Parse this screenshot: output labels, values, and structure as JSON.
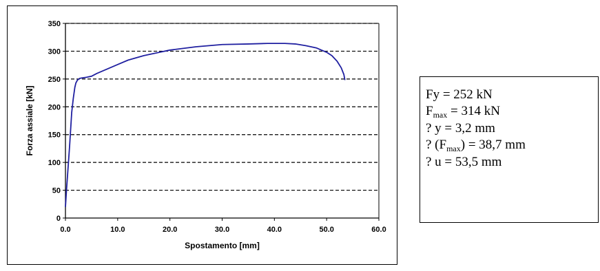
{
  "chart_data": {
    "type": "line",
    "title": "",
    "xlabel": "Spostamento [mm]",
    "ylabel": "Forza assiale [kN]",
    "xlim": [
      0,
      60
    ],
    "ylim": [
      0,
      350
    ],
    "xticks": [
      "0.0",
      "10.0",
      "20.0",
      "30.0",
      "40.0",
      "50.0",
      "60.0"
    ],
    "xtick_values": [
      0,
      10,
      20,
      30,
      40,
      50,
      60
    ],
    "yticks": [
      "0",
      "50",
      "100",
      "150",
      "200",
      "250",
      "300",
      "350"
    ],
    "ytick_values": [
      0,
      50,
      100,
      150,
      200,
      250,
      300,
      350
    ],
    "grid": "horizontal-dashed",
    "legend": "none",
    "line_color": "#1f1fa0",
    "series": [
      {
        "x": [
          0,
          0.2,
          0.5,
          0.8,
          1.0,
          1.2,
          1.5,
          1.8,
          2.0,
          2.3,
          2.7,
          3.2,
          4.0,
          5.0,
          6.0,
          8.0,
          10.0,
          12.0,
          15.0,
          18.0,
          20.0,
          25.0,
          30.0,
          35.0,
          38.7,
          42.0,
          44.0,
          46.0,
          48.0,
          50.0,
          51.0,
          52.0,
          52.8,
          53.3,
          53.5
        ],
        "y": [
          20,
          50,
          90,
          130,
          160,
          190,
          215,
          235,
          243,
          248,
          251,
          252,
          253,
          255,
          260,
          268,
          276,
          284,
          292,
          298,
          302,
          308,
          312,
          313,
          314,
          314,
          313,
          310,
          306,
          298,
          292,
          282,
          270,
          258,
          248
        ]
      }
    ]
  },
  "info": {
    "fy": "Fy = 252 kN",
    "fmax_prefix": "F",
    "fmax_sub": "max",
    "fmax_suffix": " = 314 kN",
    "dy": "? y = 3,2 mm",
    "dfmax_prefix": "? (F",
    "dfmax_sub": "max",
    "dfmax_suffix": ") = 38,7 mm",
    "du": "? u = 53,5 mm"
  }
}
